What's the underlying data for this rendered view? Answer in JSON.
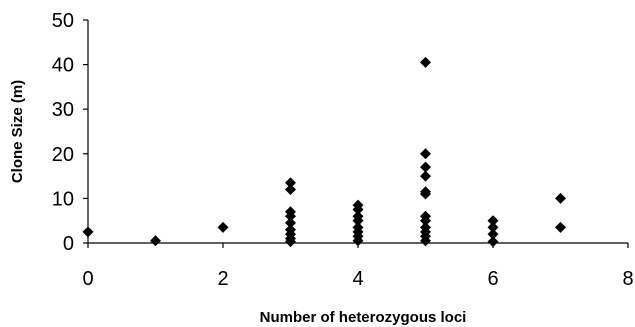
{
  "chart_data": {
    "type": "scatter",
    "title": "",
    "xlabel": "Number of heterozygous loci",
    "ylabel": "Clone Size (m)",
    "xlim": [
      0,
      8
    ],
    "ylim": [
      0,
      50
    ],
    "xticks": [
      0,
      2,
      4,
      6,
      8
    ],
    "yticks": [
      0,
      10,
      20,
      30,
      40,
      50
    ],
    "grid": false,
    "legend": "none",
    "marker": "diamond",
    "marker_color": "#000000",
    "series": [
      {
        "points": [
          {
            "x": 0,
            "y": 2.5
          },
          {
            "x": 1,
            "y": 0.5
          },
          {
            "x": 2,
            "y": 3.5
          },
          {
            "x": 3,
            "y": 13.5
          },
          {
            "x": 3,
            "y": 12
          },
          {
            "x": 3,
            "y": 7
          },
          {
            "x": 3,
            "y": 6
          },
          {
            "x": 3,
            "y": 4.5
          },
          {
            "x": 3,
            "y": 3
          },
          {
            "x": 3,
            "y": 2
          },
          {
            "x": 3,
            "y": 1
          },
          {
            "x": 3,
            "y": 0.3
          },
          {
            "x": 4,
            "y": 8.5
          },
          {
            "x": 4,
            "y": 7.5
          },
          {
            "x": 4,
            "y": 6
          },
          {
            "x": 4,
            "y": 5
          },
          {
            "x": 4,
            "y": 3.5
          },
          {
            "x": 4,
            "y": 2.5
          },
          {
            "x": 4,
            "y": 1.5
          },
          {
            "x": 4,
            "y": 0.5
          },
          {
            "x": 5,
            "y": 40.5
          },
          {
            "x": 5,
            "y": 20
          },
          {
            "x": 5,
            "y": 17
          },
          {
            "x": 5,
            "y": 15
          },
          {
            "x": 5,
            "y": 11.5
          },
          {
            "x": 5,
            "y": 11
          },
          {
            "x": 5,
            "y": 6
          },
          {
            "x": 5,
            "y": 5
          },
          {
            "x": 5,
            "y": 3.5
          },
          {
            "x": 5,
            "y": 2.5
          },
          {
            "x": 5,
            "y": 1.5
          },
          {
            "x": 5,
            "y": 0.5
          },
          {
            "x": 6,
            "y": 5
          },
          {
            "x": 6,
            "y": 3.5
          },
          {
            "x": 6,
            "y": 2
          },
          {
            "x": 6,
            "y": 0.3
          },
          {
            "x": 7,
            "y": 10
          },
          {
            "x": 7,
            "y": 3.5
          }
        ]
      }
    ]
  }
}
